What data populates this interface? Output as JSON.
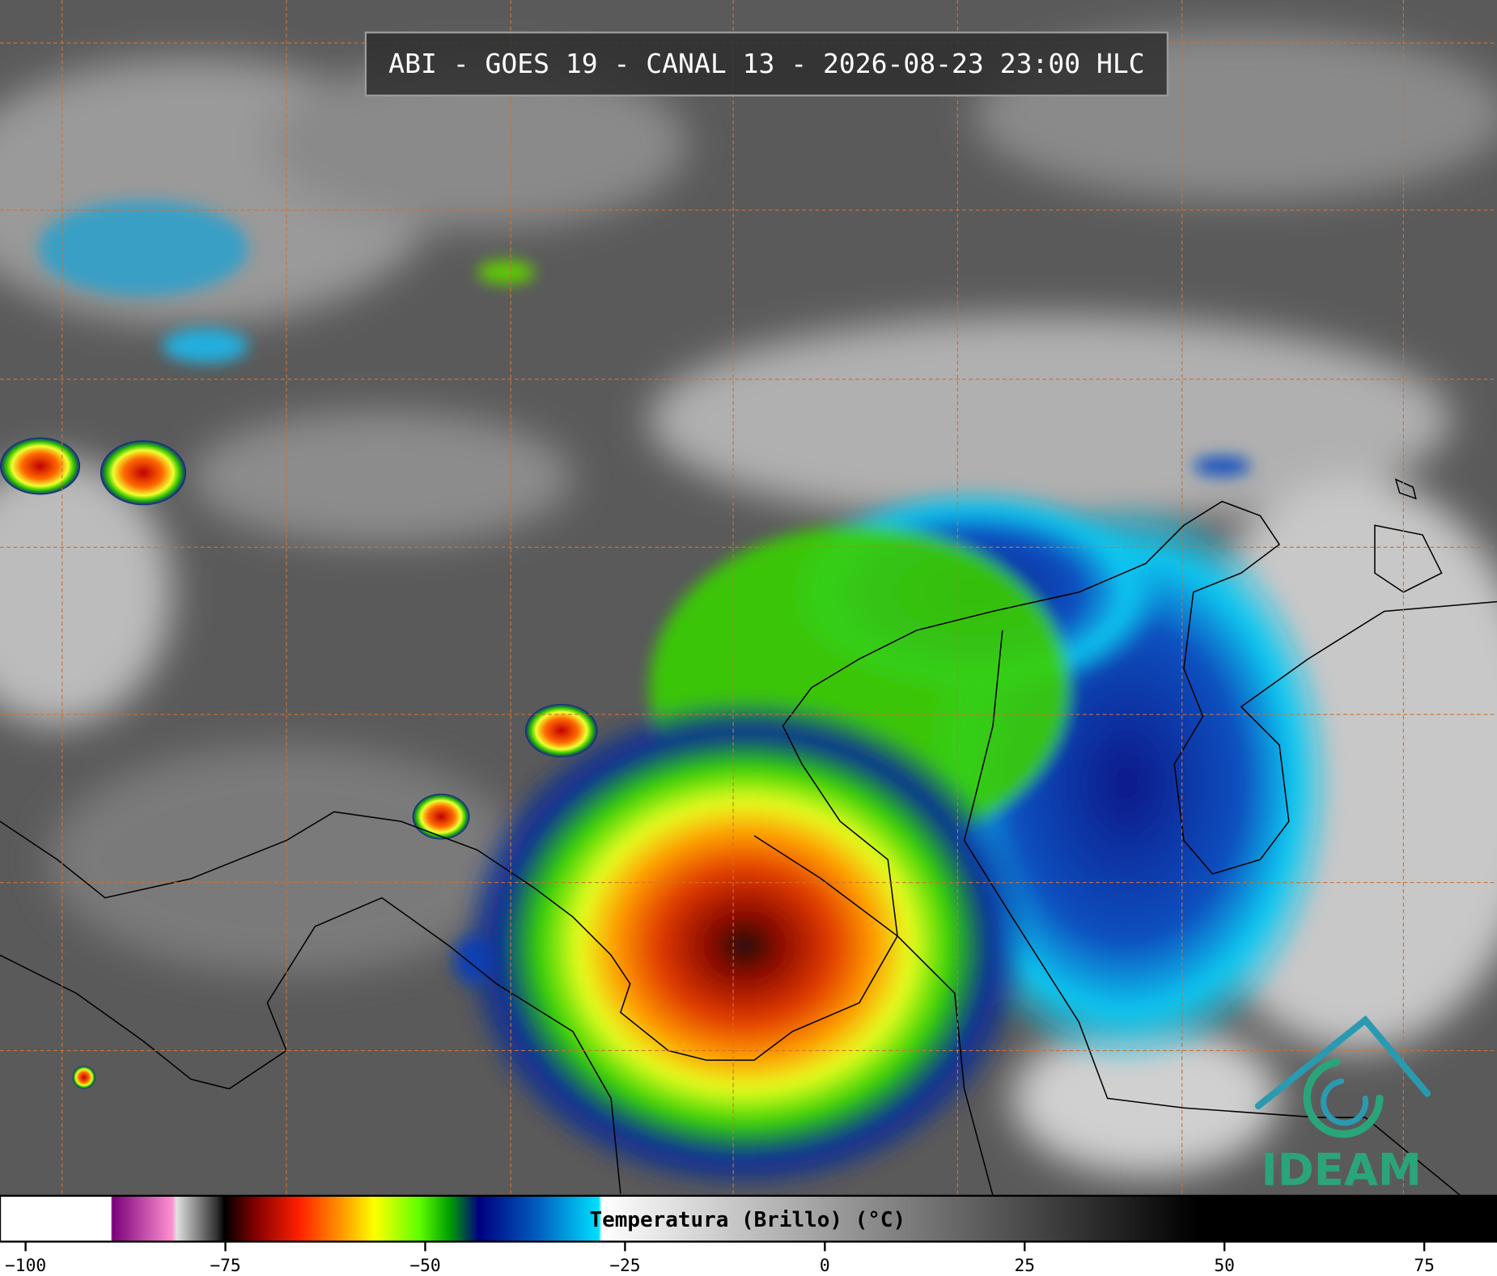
{
  "header": {
    "title": "ABI - GOES 19 - CANAL 13 - 2026-08-23 23:00 HLC"
  },
  "colorbar": {
    "label": "Temperatura (Brillo) (°C)",
    "range": [
      -103.2,
      84.1
    ],
    "ticks": [
      {
        "value": -100,
        "label": "−100"
      },
      {
        "value": -75,
        "label": "−75"
      },
      {
        "value": -50,
        "label": "−50"
      },
      {
        "value": -25,
        "label": "−25"
      },
      0,
      25,
      50,
      75
    ]
  },
  "logo": {
    "text": "IDEAM"
  }
}
